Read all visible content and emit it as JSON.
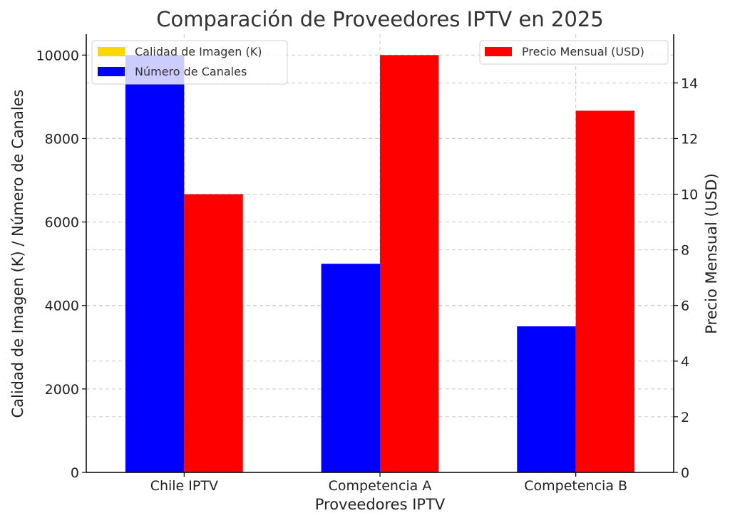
{
  "chart_data": {
    "type": "bar",
    "title": "Comparación de Proveedores IPTV en 2025",
    "xlabel": "Proveedores IPTV",
    "ylabel_left": "Calidad de Imagen (K) / Número de Canales",
    "ylabel_right": "Precio Mensual (USD)",
    "categories": [
      "Chile IPTV",
      "Competencia A",
      "Competencia B"
    ],
    "ylim_left": [
      0,
      10500
    ],
    "yticks_left": [
      0,
      2000,
      4000,
      6000,
      8000,
      10000
    ],
    "ylim_right": [
      0,
      15.75
    ],
    "yticks_right": [
      0,
      2,
      4,
      6,
      8,
      10,
      12,
      14
    ],
    "grid": true,
    "series": [
      {
        "name": "Calidad de Imagen (K)",
        "axis": "left",
        "color": "#FFD700",
        "values": [
          4,
          2,
          1
        ]
      },
      {
        "name": "Número de Canales",
        "axis": "left",
        "color": "#0000FF",
        "values": [
          10000,
          5000,
          3500
        ]
      },
      {
        "name": "Precio Mensual (USD)",
        "axis": "right",
        "color": "#FF0000",
        "values": [
          10,
          15,
          13
        ]
      }
    ],
    "legend_left_placement": "upper-left",
    "legend_right_placement": "upper-right"
  }
}
